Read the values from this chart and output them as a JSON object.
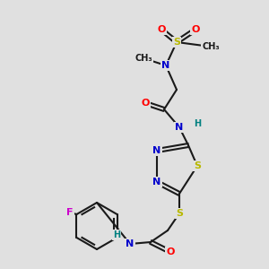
{
  "bg_color": "#e0e0e0",
  "bond_color": "#1a1a1a",
  "line_width": 1.5,
  "atom_colors": {
    "N": "#0000cc",
    "O": "#ff0000",
    "S": "#b8b800",
    "F": "#cc00cc",
    "H": "#008080",
    "C": "#1a1a1a"
  },
  "font_size": 8,
  "fig_size": [
    3.0,
    3.0
  ],
  "dpi": 100
}
